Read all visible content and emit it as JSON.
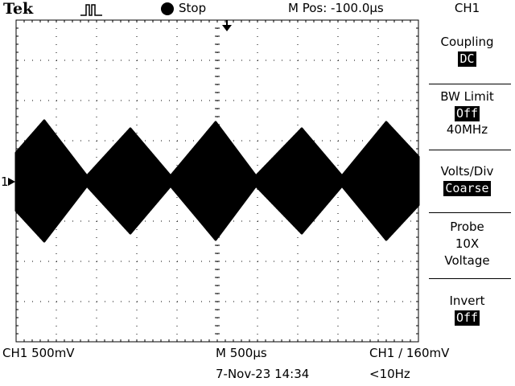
{
  "header": {
    "brand": "Tek",
    "acquisition_icon": "single-pulse-icon",
    "run_state": "Stop",
    "run_state_icon": "filled-circle-icon",
    "horizontal_position": "M Pos: -100.0µs"
  },
  "waveform": {
    "channel_marker": "1",
    "channel_marker_icon": "channel-ground-arrow-icon",
    "trigger_position_icon": "trigger-position-arrow-icon",
    "trigger_level_icon": "trigger-level-arrow-icon",
    "shape": "amplitude-modulated sine (triangular envelope)",
    "peaks_visible": 5
  },
  "menu": {
    "title": "CH1",
    "items": [
      {
        "label": "Coupling",
        "value": "DC",
        "value_inverted": true
      },
      {
        "label": "BW Limit",
        "value": "Off",
        "value_inverted": true,
        "extra": "40MHz"
      },
      {
        "label": "Volts/Div",
        "value": "Coarse",
        "value_inverted": true
      },
      {
        "label": "Probe",
        "value": "10X",
        "value_inverted": false,
        "extra": "Voltage"
      },
      {
        "label": "Invert",
        "value": "Off",
        "value_inverted": true
      }
    ]
  },
  "status": {
    "ch1_scale": "CH1  500mV",
    "timebase": "M 500µs",
    "trigger": "CH1 ∕ 160mV",
    "date_time": "7-Nov-23 14:34",
    "frequency": "<10Hz"
  },
  "colors": {
    "background": "#ffffff",
    "foreground": "#000000"
  }
}
